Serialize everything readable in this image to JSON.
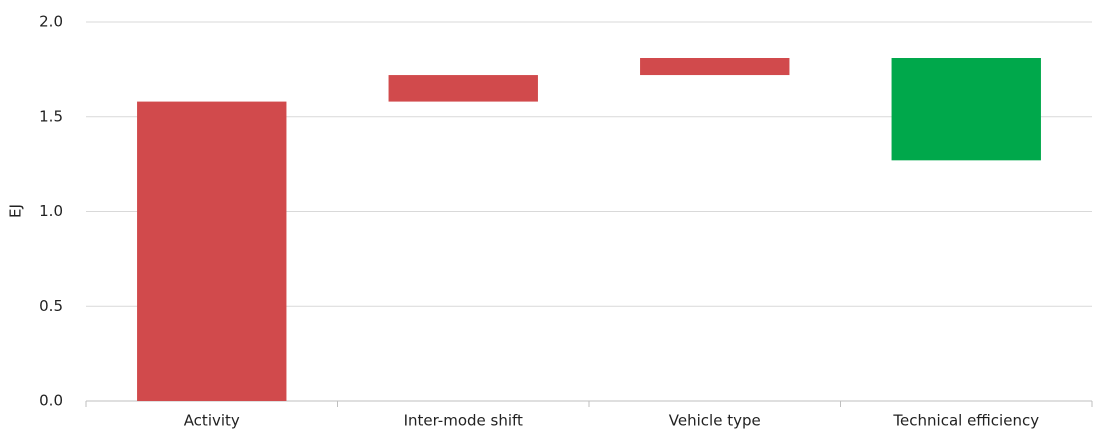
{
  "chart_data": {
    "type": "waterfall",
    "y_label": "EJ",
    "categories": [
      "Activity",
      "Inter-mode shift",
      "Vehicle type",
      "Technical efficiency"
    ],
    "values": [
      1.58,
      0.14,
      0.09,
      -0.54
    ],
    "increase_color": "#d14a4c",
    "decrease_color": "#00a84b",
    "ylim": [
      0,
      2.0
    ],
    "yticks": [
      {
        "value": 0,
        "label": "0.0"
      },
      {
        "value": 0.5,
        "label": "0.5"
      },
      {
        "value": 1.0,
        "label": "1.0"
      },
      {
        "value": 1.5,
        "label": "1.5"
      },
      {
        "value": 2.0,
        "label": "2.0"
      }
    ],
    "grid": true
  }
}
